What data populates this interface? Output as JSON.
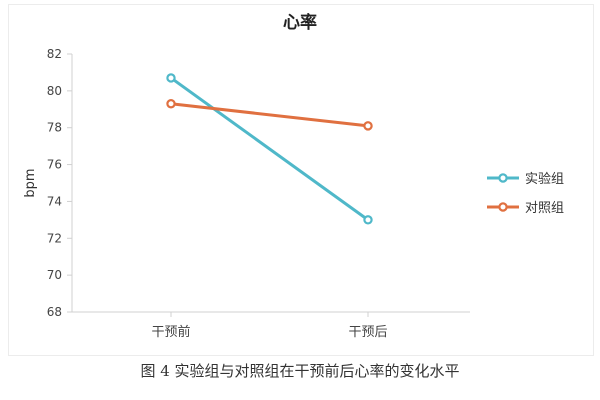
{
  "chart_data": {
    "type": "line",
    "title": "心率",
    "xlabel": "",
    "ylabel": "bpm",
    "categories": [
      "干预前",
      "干预后"
    ],
    "ylim": [
      68,
      82
    ],
    "yticks": [
      68,
      70,
      72,
      74,
      76,
      78,
      80,
      82
    ],
    "grid": false,
    "legend_position": "right",
    "series": [
      {
        "name": "实验组",
        "values": [
          80.7,
          73.0
        ],
        "color": "#4fb8c9"
      },
      {
        "name": "对照组",
        "values": [
          79.3,
          78.1
        ],
        "color": "#e07040"
      }
    ]
  },
  "caption": "图 4  实验组与对照组在干预前后心率的变化水平"
}
